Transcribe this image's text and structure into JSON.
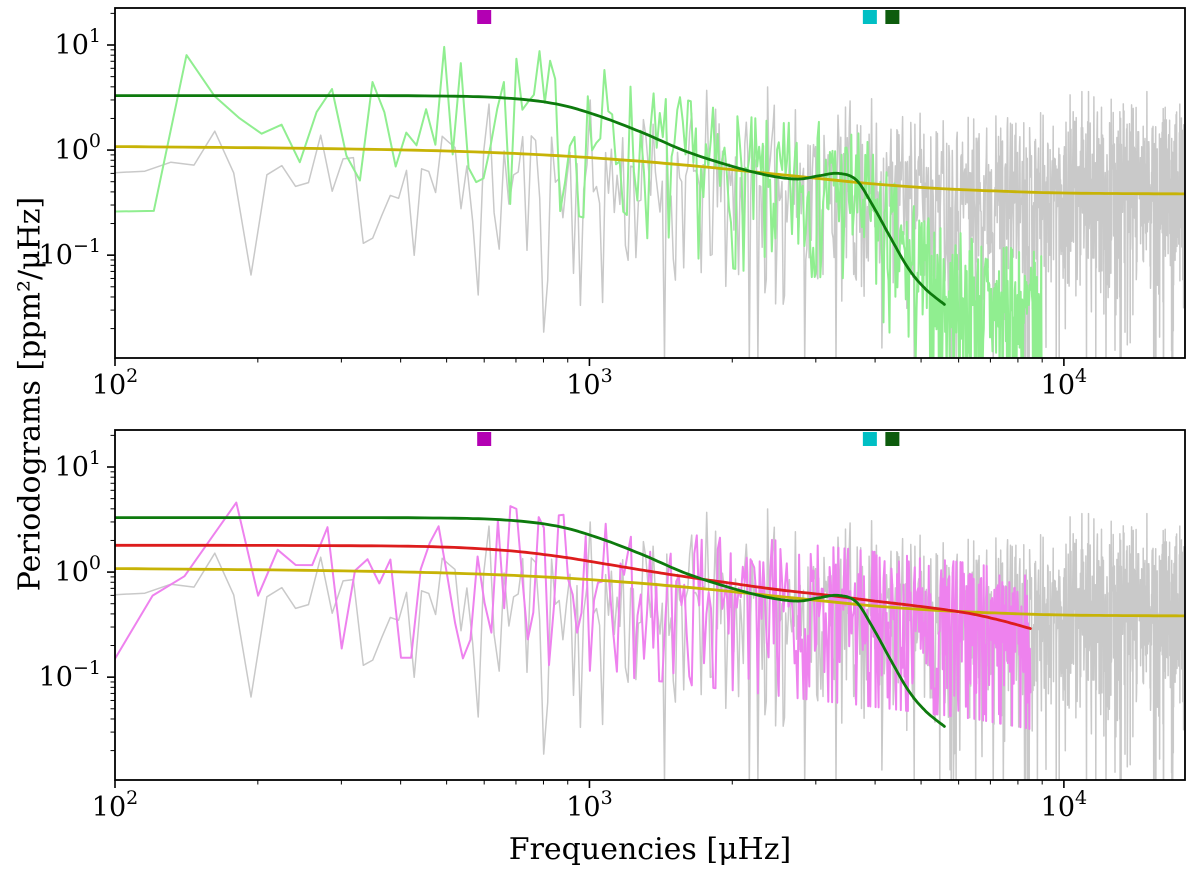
{
  "labels": {
    "xlabel": "Frequencies [μHz]",
    "ylabel": "Periodograms [ppm²/μHz]"
  },
  "chart_data": [
    {
      "name": "top-panel",
      "type": "line",
      "xscale": "log",
      "yscale": "log",
      "xlim": [
        100,
        18000
      ],
      "ylim": [
        0.0105,
        22.5
      ],
      "grid": false,
      "legend": "none",
      "xticks": [
        {
          "value": 100,
          "base": "10",
          "exp": "2"
        },
        {
          "value": 1000,
          "base": "10",
          "exp": "3"
        },
        {
          "value": 10000,
          "base": "10",
          "exp": "4"
        }
      ],
      "yticks": [
        {
          "value": 10,
          "base": "10",
          "exp": "1"
        },
        {
          "value": 1,
          "base": "10",
          "exp": "0"
        },
        {
          "value": 0.1,
          "base": "10",
          "exp": "−1"
        }
      ],
      "series": [
        {
          "name": "raw-periodogram",
          "kind": "noisy",
          "color": "#c9c9c9",
          "linewidth": 1.5,
          "seed": 11,
          "n": 1150,
          "x_start": 100,
          "x_end": 18000,
          "noise": "exponential",
          "e_min": 0.015,
          "e_max": 6,
          "trend": [
            [
              100,
              0.85
            ],
            [
              250,
              0.75
            ],
            [
              600,
              0.72
            ],
            [
              1000,
              0.72
            ],
            [
              2000,
              0.68
            ],
            [
              4000,
              0.62
            ],
            [
              8000,
              0.6
            ],
            [
              18000,
              0.6
            ]
          ]
        },
        {
          "name": "smoothed-periodogram-green",
          "kind": "noisy",
          "color": "#90ee90",
          "linewidth": 2,
          "seed": 7,
          "n": 430,
          "x_start": 100,
          "x_end": 9000,
          "noise": "exponential",
          "e_min": 0.1,
          "e_max": 3,
          "trend": [
            [
              100,
              2.6
            ],
            [
              250,
              2.8
            ],
            [
              400,
              3.2
            ],
            [
              600,
              3.2
            ],
            [
              800,
              2.9
            ],
            [
              1000,
              2.2
            ],
            [
              1300,
              1.5
            ],
            [
              1600,
              1.0
            ],
            [
              2000,
              0.75
            ],
            [
              2500,
              0.6
            ],
            [
              3000,
              0.62
            ],
            [
              3500,
              0.6
            ],
            [
              3900,
              0.38
            ],
            [
              4300,
              0.18
            ],
            [
              4800,
              0.1
            ],
            [
              5500,
              0.06
            ],
            [
              6500,
              0.05
            ],
            [
              7500,
              0.04
            ],
            [
              9000,
              0.035
            ]
          ]
        },
        {
          "name": "background-model-yellow",
          "kind": "smooth",
          "color": "#c7b306",
          "linewidth": 2.8,
          "points": [
            [
              100,
              1.08
            ],
            [
              250,
              1.04
            ],
            [
              500,
              0.98
            ],
            [
              800,
              0.9
            ],
            [
              1200,
              0.8
            ],
            [
              1700,
              0.7
            ],
            [
              2300,
              0.61
            ],
            [
              3000,
              0.54
            ],
            [
              4000,
              0.475
            ],
            [
              5500,
              0.43
            ],
            [
              7500,
              0.405
            ],
            [
              10000,
              0.39
            ],
            [
              14000,
              0.385
            ],
            [
              18000,
              0.383
            ]
          ]
        },
        {
          "name": "oscillation-model-green",
          "kind": "smooth",
          "color": "#0d7a0d",
          "linewidth": 2.8,
          "points": [
            [
              100,
              3.3
            ],
            [
              250,
              3.3
            ],
            [
              450,
              3.28
            ],
            [
              650,
              3.15
            ],
            [
              850,
              2.75
            ],
            [
              1050,
              2.1
            ],
            [
              1300,
              1.45
            ],
            [
              1600,
              0.97
            ],
            [
              2000,
              0.7
            ],
            [
              2400,
              0.57
            ],
            [
              2750,
              0.53
            ],
            [
              3050,
              0.57
            ],
            [
              3350,
              0.6
            ],
            [
              3650,
              0.52
            ],
            [
              3950,
              0.3
            ],
            [
              4300,
              0.15
            ],
            [
              4700,
              0.075
            ],
            [
              5100,
              0.048
            ],
            [
              5600,
              0.034
            ]
          ]
        }
      ],
      "markers": [
        {
          "name": "magenta-frequency-marker",
          "x": 600,
          "color": "#b300b3"
        },
        {
          "name": "cyan-frequency-marker",
          "x": 3900,
          "color": "#00bfc4"
        },
        {
          "name": "darkgreen-frequency-marker",
          "x": 4350,
          "color": "#0d5c0d"
        }
      ]
    },
    {
      "name": "bottom-panel",
      "type": "line",
      "xscale": "log",
      "yscale": "log",
      "xlim": [
        100,
        18000
      ],
      "ylim": [
        0.0105,
        22.5
      ],
      "grid": false,
      "legend": "none",
      "xticks": [
        {
          "value": 100,
          "base": "10",
          "exp": "2"
        },
        {
          "value": 1000,
          "base": "10",
          "exp": "3"
        },
        {
          "value": 10000,
          "base": "10",
          "exp": "4"
        }
      ],
      "yticks": [
        {
          "value": 10,
          "base": "10",
          "exp": "1"
        },
        {
          "value": 1,
          "base": "10",
          "exp": "0"
        },
        {
          "value": 0.1,
          "base": "10",
          "exp": "−1"
        }
      ],
      "series": [
        {
          "name": "raw-periodogram",
          "kind": "noisy",
          "color": "#c9c9c9",
          "linewidth": 1.5,
          "seed": 11,
          "n": 1150,
          "x_start": 100,
          "x_end": 18000,
          "noise": "exponential",
          "e_min": 0.015,
          "e_max": 6,
          "trend": [
            [
              100,
              0.85
            ],
            [
              250,
              0.75
            ],
            [
              600,
              0.72
            ],
            [
              1000,
              0.72
            ],
            [
              2000,
              0.68
            ],
            [
              4000,
              0.62
            ],
            [
              8000,
              0.6
            ],
            [
              18000,
              0.6
            ]
          ]
        },
        {
          "name": "smoothed-periodogram-violet",
          "kind": "noisy",
          "color": "#ee82ee",
          "linewidth": 2,
          "seed": 19,
          "n": 420,
          "x_start": 100,
          "x_end": 8500,
          "noise": "exponential",
          "e_min": 0.1,
          "e_max": 3,
          "trend": [
            [
              100,
              1.5
            ],
            [
              300,
              1.55
            ],
            [
              600,
              1.5
            ],
            [
              900,
              1.25
            ],
            [
              1200,
              1.0
            ],
            [
              1600,
              0.85
            ],
            [
              2000,
              0.75
            ],
            [
              3000,
              0.6
            ],
            [
              4000,
              0.52
            ],
            [
              5000,
              0.46
            ],
            [
              6500,
              0.4
            ],
            [
              8500,
              0.32
            ]
          ]
        },
        {
          "name": "background-model-yellow",
          "kind": "smooth",
          "color": "#c7b306",
          "linewidth": 2.8,
          "points": [
            [
              100,
              1.08
            ],
            [
              250,
              1.04
            ],
            [
              500,
              0.98
            ],
            [
              800,
              0.9
            ],
            [
              1200,
              0.8
            ],
            [
              1700,
              0.7
            ],
            [
              2300,
              0.61
            ],
            [
              3000,
              0.54
            ],
            [
              4000,
              0.475
            ],
            [
              5500,
              0.43
            ],
            [
              7500,
              0.405
            ],
            [
              10000,
              0.39
            ],
            [
              14000,
              0.385
            ],
            [
              18000,
              0.383
            ]
          ]
        },
        {
          "name": "background-model-red",
          "kind": "smooth",
          "color": "#dd1c1c",
          "linewidth": 2.8,
          "points": [
            [
              100,
              1.8
            ],
            [
              250,
              1.79
            ],
            [
              450,
              1.75
            ],
            [
              650,
              1.62
            ],
            [
              850,
              1.42
            ],
            [
              1050,
              1.22
            ],
            [
              1300,
              1.04
            ],
            [
              1600,
              0.9
            ],
            [
              2000,
              0.78
            ],
            [
              2500,
              0.68
            ],
            [
              3200,
              0.6
            ],
            [
              4000,
              0.53
            ],
            [
              5000,
              0.47
            ],
            [
              6200,
              0.41
            ],
            [
              7300,
              0.35
            ],
            [
              8500,
              0.29
            ]
          ]
        },
        {
          "name": "oscillation-model-green",
          "kind": "smooth",
          "color": "#0d7a0d",
          "linewidth": 2.8,
          "points": [
            [
              100,
              3.3
            ],
            [
              250,
              3.3
            ],
            [
              450,
              3.28
            ],
            [
              650,
              3.15
            ],
            [
              850,
              2.75
            ],
            [
              1050,
              2.1
            ],
            [
              1300,
              1.45
            ],
            [
              1600,
              0.97
            ],
            [
              2000,
              0.7
            ],
            [
              2400,
              0.57
            ],
            [
              2750,
              0.53
            ],
            [
              3050,
              0.57
            ],
            [
              3350,
              0.6
            ],
            [
              3650,
              0.52
            ],
            [
              3950,
              0.3
            ],
            [
              4300,
              0.15
            ],
            [
              4700,
              0.075
            ],
            [
              5100,
              0.048
            ],
            [
              5600,
              0.034
            ]
          ]
        }
      ],
      "markers": [
        {
          "name": "magenta-frequency-marker",
          "x": 600,
          "color": "#b300b3"
        },
        {
          "name": "cyan-frequency-marker",
          "x": 3900,
          "color": "#00bfc4"
        },
        {
          "name": "darkgreen-frequency-marker",
          "x": 4350,
          "color": "#0d5c0d"
        }
      ]
    }
  ]
}
